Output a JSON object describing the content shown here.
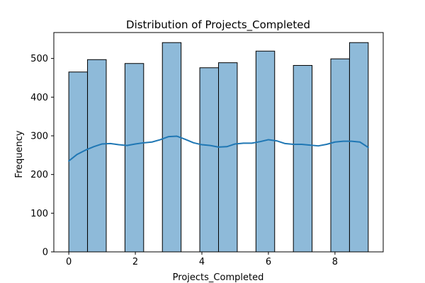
{
  "chart_data": {
    "type": "bar",
    "subtype": "histogram-with-kde",
    "title": "Distribution of Projects_Completed",
    "xlabel": "Projects_Completed",
    "ylabel": "Frequency",
    "xlim": [
      -0.45,
      9.45
    ],
    "ylim": [
      0,
      567
    ],
    "xticks": [
      0,
      2,
      4,
      6,
      8
    ],
    "yticks": [
      0,
      100,
      200,
      300,
      400,
      500
    ],
    "grid": false,
    "bar_color": "#8ebad9",
    "bar_edge_color": "#000000",
    "kde_color": "#1f77b4",
    "bars": [
      {
        "x0": 0.0,
        "x1": 0.5625,
        "value": 465
      },
      {
        "x0": 0.5625,
        "x1": 1.125,
        "value": 497
      },
      {
        "x0": 1.6875,
        "x1": 2.25,
        "value": 487
      },
      {
        "x0": 2.8125,
        "x1": 3.375,
        "value": 541
      },
      {
        "x0": 3.9375,
        "x1": 4.5,
        "value": 476
      },
      {
        "x0": 4.5,
        "x1": 5.0625,
        "value": 489
      },
      {
        "x0": 5.625,
        "x1": 6.1875,
        "value": 519
      },
      {
        "x0": 6.75,
        "x1": 7.3125,
        "value": 482
      },
      {
        "x0": 7.875,
        "x1": 8.4375,
        "value": 499
      },
      {
        "x0": 8.4375,
        "x1": 9.0,
        "value": 541
      }
    ],
    "kde": {
      "x": [
        0,
        0.25,
        0.5,
        0.75,
        1.0,
        1.25,
        1.5,
        1.75,
        2.0,
        2.25,
        2.5,
        2.75,
        3.0,
        3.25,
        3.5,
        3.75,
        4.0,
        4.25,
        4.5,
        4.75,
        5.0,
        5.25,
        5.5,
        5.75,
        6.0,
        6.25,
        6.5,
        6.75,
        7.0,
        7.25,
        7.5,
        7.75,
        8.0,
        8.25,
        8.5,
        8.75,
        9.0
      ],
      "y": [
        235,
        252,
        263,
        272,
        279,
        280,
        277,
        275,
        279,
        282,
        284,
        290,
        298,
        299,
        291,
        282,
        277,
        275,
        271,
        272,
        279,
        281,
        281,
        285,
        290,
        287,
        280,
        278,
        278,
        276,
        274,
        278,
        284,
        286,
        286,
        284,
        270
      ]
    }
  }
}
